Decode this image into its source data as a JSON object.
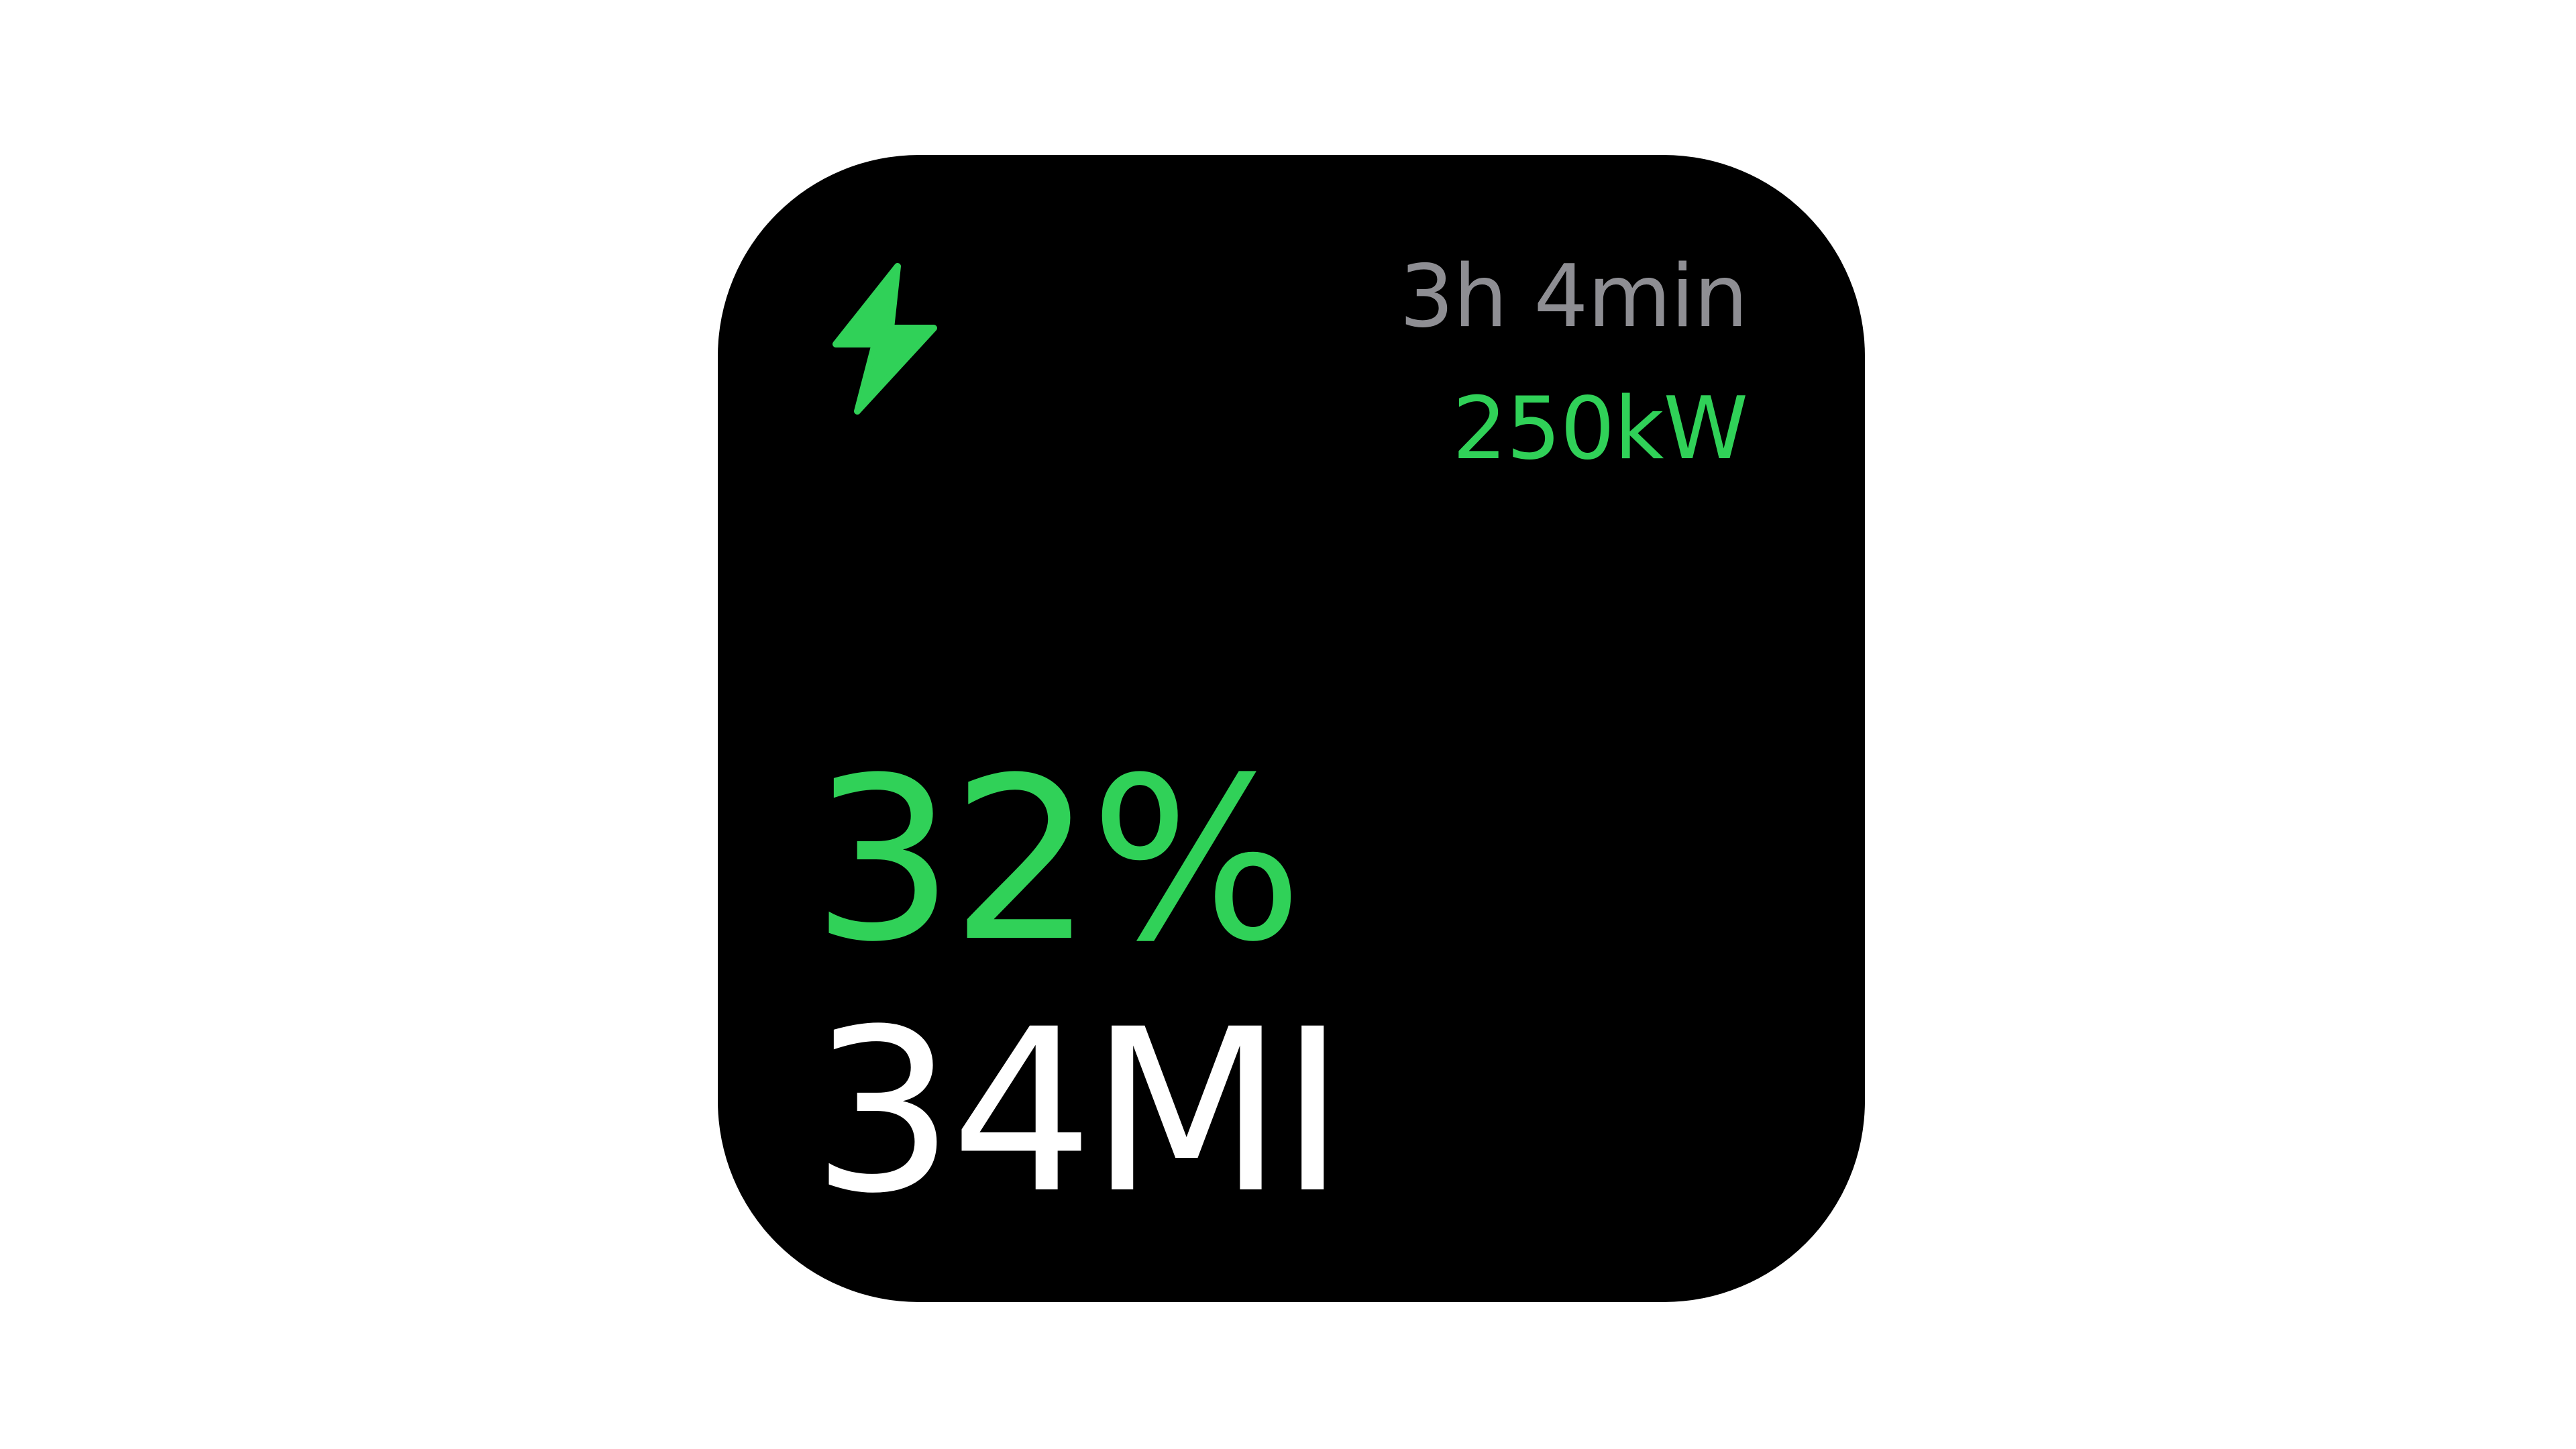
{
  "widget": {
    "icon": "lightning-bolt-icon",
    "time_remaining": "3h 4min",
    "charging_power": "250kW",
    "battery_percent": "32%",
    "range": "34MI",
    "colors": {
      "background": "#000000",
      "accent": "#30d158",
      "secondary_text": "#8e8e93",
      "primary_text": "#ffffff"
    }
  }
}
